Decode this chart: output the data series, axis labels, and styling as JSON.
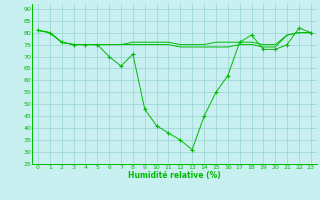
{
  "xlabel": "Humidité relative (%)",
  "bg_color": "#c8f0f0",
  "grid_color": "#a0d8d8",
  "line_color": "#00bb00",
  "xlim": [
    -0.5,
    23.5
  ],
  "ylim": [
    25,
    92
  ],
  "yticks": [
    25,
    30,
    35,
    40,
    45,
    50,
    55,
    60,
    65,
    70,
    75,
    80,
    85,
    90
  ],
  "xticks": [
    0,
    1,
    2,
    3,
    4,
    5,
    6,
    7,
    8,
    9,
    10,
    11,
    12,
    13,
    14,
    15,
    16,
    17,
    18,
    19,
    20,
    21,
    22,
    23
  ],
  "x": [
    0,
    1,
    2,
    3,
    4,
    5,
    6,
    7,
    8,
    9,
    10,
    11,
    12,
    13,
    14,
    15,
    16,
    17,
    18,
    19,
    20,
    21,
    22,
    23
  ],
  "series_main": [
    81,
    80,
    76,
    75,
    75,
    75,
    70,
    66,
    71,
    48,
    41,
    38,
    35,
    31,
    45,
    55,
    62,
    76,
    79,
    73,
    73,
    75,
    82,
    80
  ],
  "series_flat1": [
    81,
    80,
    76,
    75,
    75,
    75,
    75,
    75,
    76,
    76,
    76,
    76,
    75,
    75,
    75,
    76,
    76,
    76,
    76,
    75,
    75,
    79,
    80,
    80
  ],
  "series_flat2": [
    81,
    80,
    76,
    75,
    75,
    75,
    75,
    75,
    75,
    75,
    75,
    75,
    74,
    74,
    74,
    74,
    74,
    75,
    75,
    74,
    74,
    79,
    80,
    80
  ]
}
